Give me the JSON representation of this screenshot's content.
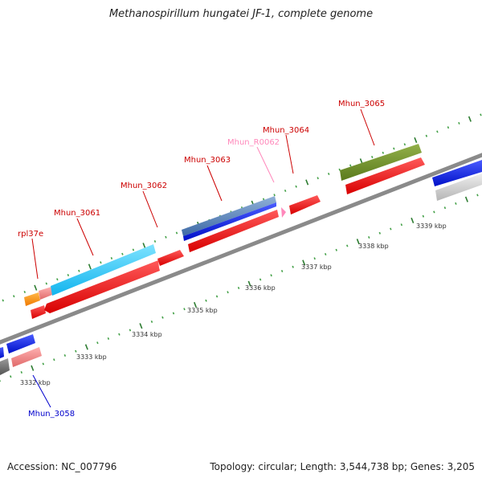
{
  "title": "Methanospirillum hungatei JF-1, complete genome",
  "footer": {
    "accession": "Accession: NC_007796",
    "summary": "Topology: circular; Length: 3,544,738 bp; Genes: 3,205"
  },
  "colors": {
    "backbone": "#8a8a8a",
    "tick_major": "#2e7d32",
    "tick_minor": "#43a047",
    "cds_red": "#ee1111",
    "label_red": "#cc0000",
    "label_pink": "#ff88bb",
    "label_blue": "#0000cc"
  },
  "kbp_labels": [
    {
      "kbp": 3332,
      "text": "3332 kbp"
    },
    {
      "kbp": 3333,
      "text": "3333 kbp"
    },
    {
      "kbp": 3334,
      "text": "3334 kbp"
    },
    {
      "kbp": 3335,
      "text": "3335 kbp"
    },
    {
      "kbp": 3336,
      "text": "3336 kbp"
    },
    {
      "kbp": 3337,
      "text": "3337 kbp"
    },
    {
      "kbp": 3338,
      "text": "3338 kbp"
    },
    {
      "kbp": 3339,
      "text": "3339 kbp"
    }
  ],
  "gene_labels": [
    {
      "id": "rpl37e",
      "text": "rpl37e",
      "color": "#cc0000"
    },
    {
      "id": "mhun-3061",
      "text": "Mhun_3061",
      "color": "#cc0000"
    },
    {
      "id": "mhun-3062",
      "text": "Mhun_3062",
      "color": "#cc0000"
    },
    {
      "id": "mhun-3063",
      "text": "Mhun_3063",
      "color": "#cc0000"
    },
    {
      "id": "mhun-r0062",
      "text": "Mhun_R0062",
      "color": "#ff88bb"
    },
    {
      "id": "mhun-3064",
      "text": "Mhun_3064",
      "color": "#cc0000"
    },
    {
      "id": "mhun-3065",
      "text": "Mhun_3065",
      "color": "#cc0000"
    },
    {
      "id": "mhun-3058",
      "text": "Mhun_3058",
      "color": "#0000cc"
    }
  ]
}
